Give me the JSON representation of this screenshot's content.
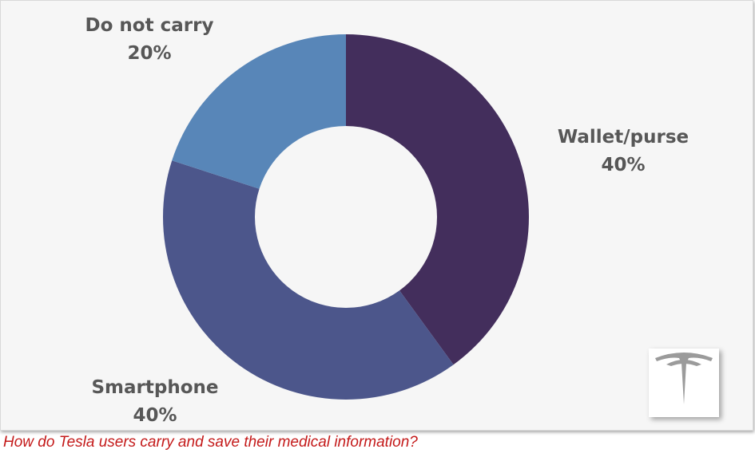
{
  "caption": "How do Tesla users carry and save their medical information?",
  "logo": {
    "name": "Tesla",
    "color": "#9b9b9b"
  },
  "chart_data": {
    "type": "pie",
    "donut": true,
    "title": "",
    "slices": [
      {
        "label": "Wallet/purse",
        "value": 40,
        "value_label": "40%",
        "color": "#432e5c"
      },
      {
        "label": "Smartphone",
        "value": 40,
        "value_label": "40%",
        "color": "#4c568b"
      },
      {
        "label": "Do not carry",
        "value": 20,
        "value_label": "20%",
        "color": "#5886b8"
      }
    ],
    "start_angle": "12 o'clock",
    "direction": "clockwise",
    "legend": "none"
  }
}
